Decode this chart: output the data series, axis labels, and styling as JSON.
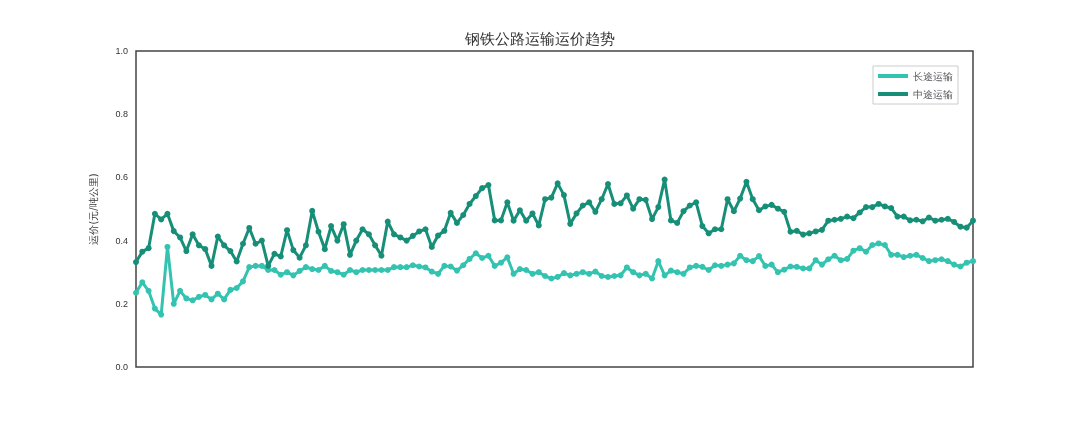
{
  "chart_data": {
    "type": "line",
    "title": "钢铁公路运输运价趋势",
    "ylabel": "运价(元/吨公里)",
    "categories": [
      null,
      null,
      null,
      null,
      null,
      null,
      null,
      null,
      null,
      null,
      null,
      null,
      null,
      null,
      null,
      null,
      null,
      null,
      null,
      null,
      null,
      null,
      null,
      null,
      null,
      null,
      null,
      null,
      null,
      null,
      null,
      null,
      null,
      null,
      null,
      null,
      null,
      null,
      null,
      null,
      null,
      null,
      null,
      null,
      null,
      null,
      null,
      null,
      null,
      null,
      null,
      null,
      null,
      null,
      null,
      null,
      null,
      null,
      null,
      null,
      null,
      null,
      null,
      null,
      null,
      null,
      null,
      null,
      null,
      null,
      null,
      null,
      null,
      null,
      null,
      null,
      null,
      null,
      null,
      null,
      null,
      null,
      null,
      null,
      null,
      null,
      null,
      null,
      null,
      null,
      null,
      null,
      null,
      null,
      null,
      null,
      null,
      null,
      null,
      null,
      null,
      null,
      null,
      null,
      null,
      null,
      null,
      null,
      null,
      null,
      null,
      null,
      null,
      null,
      null,
      null,
      null,
      null,
      null,
      null,
      null,
      null,
      null,
      null,
      null,
      null,
      null,
      null,
      null,
      null,
      null,
      null,
      null,
      null
    ],
    "series": [
      {
        "name": "长途运输",
        "color": "#33c3b0",
        "values": [
          0.235,
          0.268,
          0.241,
          0.185,
          0.166,
          0.38,
          0.2,
          0.241,
          0.217,
          0.211,
          0.222,
          0.228,
          0.214,
          0.232,
          0.214,
          0.244,
          0.25,
          0.271,
          0.316,
          0.32,
          0.32,
          0.307,
          0.307,
          0.292,
          0.3,
          0.29,
          0.304,
          0.316,
          0.31,
          0.307,
          0.32,
          0.304,
          0.3,
          0.292,
          0.307,
          0.3,
          0.307,
          0.307,
          0.307,
          0.307,
          0.307,
          0.316,
          0.316,
          0.316,
          0.322,
          0.318,
          0.315,
          0.302,
          0.295,
          0.32,
          0.318,
          0.305,
          0.322,
          0.342,
          0.36,
          0.345,
          0.352,
          0.32,
          0.33,
          0.347,
          0.295,
          0.31,
          0.307,
          0.295,
          0.3,
          0.288,
          0.28,
          0.285,
          0.297,
          0.29,
          0.295,
          0.3,
          0.295,
          0.302,
          0.288,
          0.285,
          0.288,
          0.29,
          0.315,
          0.3,
          0.29,
          0.295,
          0.28,
          0.335,
          0.29,
          0.305,
          0.3,
          0.295,
          0.315,
          0.32,
          0.317,
          0.307,
          0.322,
          0.32,
          0.324,
          0.328,
          0.352,
          0.338,
          0.335,
          0.351,
          0.32,
          0.324,
          0.3,
          0.308,
          0.318,
          0.317,
          0.312,
          0.312,
          0.338,
          0.324,
          0.341,
          0.352,
          0.338,
          0.342,
          0.368,
          0.376,
          0.365,
          0.386,
          0.391,
          0.386,
          0.355,
          0.355,
          0.348,
          0.352,
          0.355,
          0.345,
          0.335,
          0.338,
          0.341,
          0.335,
          0.324,
          0.318,
          0.33,
          0.335
        ]
      },
      {
        "name": "中途运输",
        "color": "#178f78",
        "values": [
          0.332,
          0.365,
          0.376,
          0.485,
          0.467,
          0.485,
          0.43,
          0.41,
          0.367,
          0.42,
          0.385,
          0.373,
          0.32,
          0.413,
          0.385,
          0.367,
          0.334,
          0.39,
          0.44,
          0.39,
          0.4,
          0.32,
          0.358,
          0.35,
          0.433,
          0.37,
          0.346,
          0.385,
          0.494,
          0.428,
          0.373,
          0.446,
          0.4,
          0.452,
          0.355,
          0.4,
          0.436,
          0.42,
          0.385,
          0.352,
          0.46,
          0.42,
          0.41,
          0.4,
          0.415,
          0.429,
          0.436,
          0.38,
          0.416,
          0.431,
          0.488,
          0.456,
          0.481,
          0.516,
          0.541,
          0.566,
          0.576,
          0.464,
          0.464,
          0.521,
          0.463,
          0.496,
          0.463,
          0.486,
          0.448,
          0.531,
          0.536,
          0.581,
          0.544,
          0.453,
          0.486,
          0.511,
          0.521,
          0.491,
          0.531,
          0.579,
          0.516,
          0.518,
          0.543,
          0.501,
          0.531,
          0.529,
          0.468,
          0.506,
          0.593,
          0.464,
          0.456,
          0.493,
          0.511,
          0.521,
          0.446,
          0.423,
          0.436,
          0.436,
          0.531,
          0.493,
          0.533,
          0.586,
          0.531,
          0.496,
          0.508,
          0.513,
          0.501,
          0.491,
          0.428,
          0.431,
          0.419,
          0.423,
          0.429,
          0.434,
          0.463,
          0.466,
          0.469,
          0.476,
          0.471,
          0.489,
          0.506,
          0.506,
          0.516,
          0.508,
          0.503,
          0.476,
          0.476,
          0.464,
          0.466,
          0.461,
          0.473,
          0.463,
          0.466,
          0.469,
          0.459,
          0.444,
          0.441,
          0.463
        ]
      }
    ],
    "ylim": [
      0,
      1
    ],
    "yticks": [
      {
        "value": 0,
        "label": "0.0"
      },
      0.2,
      0.4,
      0.6,
      0.8,
      {
        "value": 1,
        "label": "1.0"
      }
    ],
    "grid": false,
    "legend": "top right",
    "marker": "circle",
    "line_style": "solid"
  }
}
